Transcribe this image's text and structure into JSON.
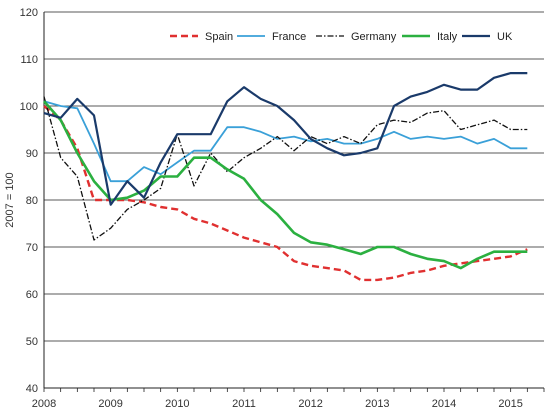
{
  "chart_data": {
    "type": "line",
    "ylabel": "2007 = 100",
    "ylim": [
      40,
      120
    ],
    "y_ticks": [
      40,
      50,
      60,
      70,
      80,
      90,
      100,
      110,
      120
    ],
    "xlim": [
      2008,
      2015.5
    ],
    "x_ticks": [
      2008,
      2009,
      2010,
      2011,
      2012,
      2013,
      2014,
      2015
    ],
    "x_tick_labels": [
      "2008",
      "2009",
      "2010",
      "2011",
      "2012",
      "2013",
      "2014",
      "2015"
    ],
    "grid": "horizontal",
    "legend": "top",
    "x": [
      2008.0,
      2008.25,
      2008.5,
      2008.75,
      2009.0,
      2009.25,
      2009.5,
      2009.75,
      2010.0,
      2010.25,
      2010.5,
      2010.75,
      2011.0,
      2011.25,
      2011.5,
      2011.75,
      2012.0,
      2012.25,
      2012.5,
      2012.75,
      2013.0,
      2013.25,
      2013.5,
      2013.75,
      2014.0,
      2014.25,
      2014.5,
      2014.75,
      2015.0,
      2015.25
    ],
    "series": [
      {
        "name": "Spain",
        "color": "#e03030",
        "dash": "7,4",
        "width": 2.4,
        "values": [
          100,
          97,
          91,
          80,
          80,
          80,
          79.5,
          78.5,
          78,
          76,
          75,
          73.5,
          72,
          71,
          70,
          67,
          66,
          65.5,
          65,
          63,
          63,
          63.5,
          64.5,
          65,
          66,
          66.5,
          67,
          67.5,
          68,
          69.5
        ]
      },
      {
        "name": "France",
        "color": "#3aa0d8",
        "dash": "",
        "width": 1.8,
        "values": [
          101,
          100,
          99.5,
          92,
          84,
          84,
          87,
          85.5,
          88,
          90.5,
          90.5,
          95.5,
          95.5,
          94.5,
          93,
          93.5,
          92.5,
          93,
          92,
          92,
          93,
          94.5,
          93,
          93.5,
          93,
          93.5,
          92,
          93,
          91,
          91
        ]
      },
      {
        "name": "Germany",
        "color": "#111111",
        "dash": "6,2,1.5,2",
        "width": 1.3,
        "values": [
          102,
          89,
          85,
          71.5,
          74,
          78,
          80,
          82.5,
          94,
          83,
          90,
          86,
          89,
          91,
          93.5,
          90.5,
          93.5,
          92,
          93.5,
          92,
          96,
          97,
          96.5,
          98.5,
          99,
          95,
          96,
          97,
          95,
          95
        ]
      },
      {
        "name": "Italy",
        "color": "#2bb040",
        "dash": "",
        "width": 2.6,
        "values": [
          101,
          97,
          90,
          84,
          80,
          80.5,
          82,
          85,
          85,
          89,
          89,
          86.5,
          84.5,
          80,
          77,
          73,
          71,
          70.5,
          69.5,
          68.5,
          70,
          70,
          68.5,
          67.5,
          67,
          65.5,
          67.5,
          69,
          69,
          69
        ]
      },
      {
        "name": "UK",
        "color": "#1a3a6a",
        "dash": "",
        "width": 2.2,
        "values": [
          98.5,
          97.5,
          101.5,
          98,
          79,
          84,
          80.5,
          88,
          94,
          94,
          94,
          101,
          104,
          101.5,
          100,
          97,
          93,
          91,
          89.5,
          90,
          91,
          100,
          102,
          103,
          104.5,
          103.5,
          103.5,
          106,
          107,
          107
        ]
      }
    ]
  }
}
